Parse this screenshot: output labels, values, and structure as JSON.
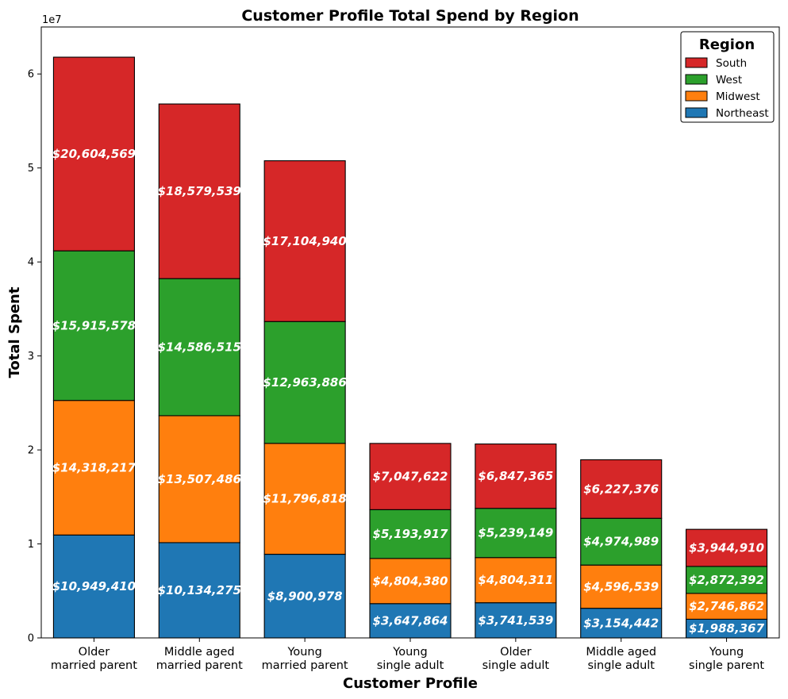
{
  "chart_data": {
    "type": "bar",
    "stacked": true,
    "title": "Customer Profile Total Spend by Region",
    "xlabel": "Customer Profile",
    "ylabel": "Total Spent",
    "y_offset_text": "1e7",
    "ylim": [
      0,
      65000000
    ],
    "yticks": [
      0,
      10000000,
      20000000,
      30000000,
      40000000,
      50000000,
      60000000
    ],
    "ytick_labels": [
      "0",
      "1",
      "2",
      "3",
      "4",
      "5",
      "6"
    ],
    "categories": [
      [
        "Older",
        "married parent"
      ],
      [
        "Middle aged",
        "married parent"
      ],
      [
        "Young",
        "married parent"
      ],
      [
        "Young",
        "single adult"
      ],
      [
        "Older",
        "single adult"
      ],
      [
        "Middle aged",
        "single adult"
      ],
      [
        "Young",
        "single parent"
      ]
    ],
    "series": [
      {
        "name": "Northeast",
        "color": "#1f77b4",
        "values": [
          10949410,
          10134275,
          8900978,
          3647864,
          3741539,
          3154442,
          1988367
        ],
        "labels": [
          "$10,949,410",
          "$10,134,275",
          "$8,900,978",
          "$3,647,864",
          "$3,741,539",
          "$3,154,442",
          "$1,988,367"
        ]
      },
      {
        "name": "Midwest",
        "color": "#ff7f0e",
        "values": [
          14318217,
          13507486,
          11796818,
          4804380,
          4804311,
          4596539,
          2746862
        ],
        "labels": [
          "$14,318,217",
          "$13,507,486",
          "$11,796,818",
          "$4,804,380",
          "$4,804,311",
          "$4,596,539",
          "$2,746,862"
        ]
      },
      {
        "name": "West",
        "color": "#2ca02c",
        "values": [
          15915578,
          14586515,
          12963886,
          5193917,
          5239149,
          4974989,
          2872392
        ],
        "labels": [
          "$15,915,578",
          "$14,586,515",
          "$12,963,886",
          "$5,193,917",
          "$5,239,149",
          "$4,974,989",
          "$2,872,392"
        ]
      },
      {
        "name": "South",
        "color": "#d62728",
        "values": [
          20604569,
          18579539,
          17104940,
          7047622,
          6847365,
          6227376,
          3944910
        ],
        "labels": [
          "$20,604,569",
          "$18,579,539",
          "$17,104,940",
          "$7,047,622",
          "$6,847,365",
          "$6,227,376",
          "$3,944,910"
        ]
      }
    ],
    "legend": {
      "title": "Region",
      "placement": "top-right",
      "order": [
        "South",
        "West",
        "Midwest",
        "Northeast"
      ]
    },
    "grid": false
  }
}
